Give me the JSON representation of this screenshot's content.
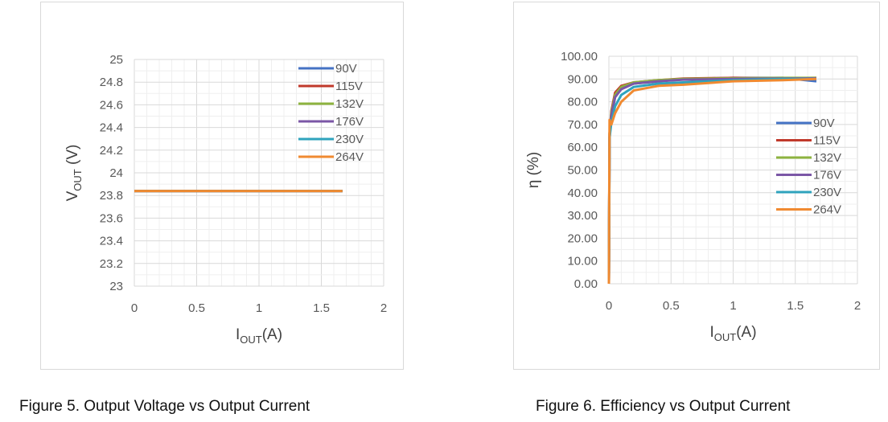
{
  "captions": {
    "fig5": "Figure 5. Output Voltage vs Output Current",
    "fig6": "Figure 6. Efficiency vs Output Current"
  },
  "chart_data": [
    {
      "type": "line",
      "title": "",
      "xlabel": "I",
      "xlabel_sub": "OUT",
      "xlabel_suffix": "(A)",
      "ylabel": "V",
      "ylabel_sub": "OUT",
      "ylabel_suffix": " (V)",
      "xlim": [
        0,
        2
      ],
      "ylim": [
        23,
        25
      ],
      "x_ticks": [
        "0",
        "0.5",
        "1",
        "1.5",
        "2"
      ],
      "y_ticks": [
        "23",
        "23.2",
        "23.4",
        "23.6",
        "23.8",
        "24",
        "24.2",
        "24.4",
        "24.6",
        "24.8",
        "25"
      ],
      "grid": true,
      "legend_position": "top-right",
      "series": [
        {
          "name": "90V",
          "color": "#4472c4",
          "x": [
            0,
            1.67
          ],
          "y": [
            23.84,
            23.84
          ]
        },
        {
          "name": "115V",
          "color": "#c0392b",
          "x": [
            0,
            1.67
          ],
          "y": [
            23.84,
            23.84
          ]
        },
        {
          "name": "132V",
          "color": "#8db33f",
          "x": [
            0,
            1.67
          ],
          "y": [
            23.84,
            23.84
          ]
        },
        {
          "name": "176V",
          "color": "#7b57a6",
          "x": [
            0,
            1.67
          ],
          "y": [
            23.84,
            23.84
          ]
        },
        {
          "name": "230V",
          "color": "#2fa3bd",
          "x": [
            0,
            1.67
          ],
          "y": [
            23.84,
            23.84
          ]
        },
        {
          "name": "264V",
          "color": "#f08a31",
          "x": [
            0,
            1.67
          ],
          "y": [
            23.84,
            23.84
          ]
        }
      ]
    },
    {
      "type": "line",
      "title": "",
      "xlabel": "I",
      "xlabel_sub": "OUT",
      "xlabel_suffix": "(A)",
      "ylabel": "η (%)",
      "ylabel_sub": "",
      "ylabel_suffix": "",
      "xlim": [
        0,
        2
      ],
      "ylim": [
        0,
        100
      ],
      "x_ticks": [
        "0",
        "0.5",
        "1",
        "1.5",
        "2"
      ],
      "y_ticks": [
        "0.00",
        "10.00",
        "20.00",
        "30.00",
        "40.00",
        "50.00",
        "60.00",
        "70.00",
        "80.00",
        "90.00",
        "100.00"
      ],
      "grid": true,
      "legend_position": "right",
      "series": [
        {
          "name": "90V",
          "color": "#4472c4",
          "x": [
            0,
            0.005,
            0.02,
            0.05,
            0.1,
            0.2,
            0.4,
            0.6,
            1.0,
            1.4,
            1.67
          ],
          "y": [
            0,
            64,
            74,
            82,
            86,
            88,
            89,
            90,
            90.5,
            90.5,
            89
          ]
        },
        {
          "name": "115V",
          "color": "#c0392b",
          "x": [
            0,
            0.005,
            0.02,
            0.05,
            0.1,
            0.2,
            0.4,
            0.6,
            1.0,
            1.4,
            1.67
          ],
          "y": [
            0,
            66,
            76,
            84,
            87,
            88.5,
            89.5,
            90.2,
            90.5,
            90.3,
            90.5
          ]
        },
        {
          "name": "132V",
          "color": "#8db33f",
          "x": [
            0,
            0.005,
            0.02,
            0.05,
            0.1,
            0.2,
            0.4,
            0.6,
            1.0,
            1.4,
            1.67
          ],
          "y": [
            0,
            66,
            75,
            83,
            86.5,
            88.5,
            89.5,
            90,
            90.3,
            90.5,
            90.5
          ]
        },
        {
          "name": "176V",
          "color": "#7b57a6",
          "x": [
            0,
            0.005,
            0.02,
            0.05,
            0.1,
            0.2,
            0.4,
            0.6,
            1.0,
            1.4,
            1.67
          ],
          "y": [
            0,
            65,
            74,
            82,
            85.5,
            88,
            89,
            89.7,
            90,
            90.2,
            90.3
          ]
        },
        {
          "name": "230V",
          "color": "#2fa3bd",
          "x": [
            0,
            0.005,
            0.02,
            0.05,
            0.1,
            0.2,
            0.4,
            0.6,
            1.0,
            1.4,
            1.67
          ],
          "y": [
            0,
            64,
            71,
            78,
            83,
            86.5,
            88,
            88.5,
            89.5,
            90,
            90
          ]
        },
        {
          "name": "264V",
          "color": "#f08a31",
          "x": [
            0,
            0.005,
            0.02,
            0.05,
            0.1,
            0.2,
            0.4,
            0.6,
            1.0,
            1.4,
            1.67
          ],
          "y": [
            0,
            72,
            70,
            75,
            80,
            85,
            87,
            87.5,
            89,
            89.5,
            90
          ]
        }
      ]
    }
  ]
}
